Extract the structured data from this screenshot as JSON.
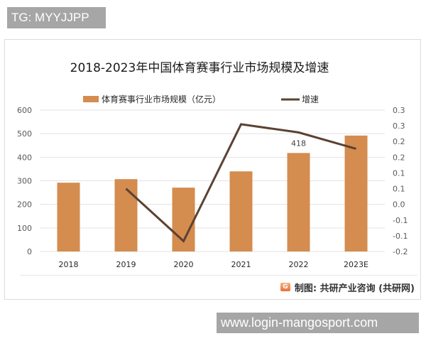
{
  "badge": {
    "text": "TG: MYYJJPP"
  },
  "url_banner": {
    "text": "www.login-mangosport.com"
  },
  "source": {
    "logo_letter": "G",
    "text": "制图: 共研产业咨询 (共研网)"
  },
  "colors": {
    "bar": "#d48c4f",
    "line": "#5b4232",
    "grid": "#e3e3e3",
    "axis_text": "#595959",
    "title": "#1a1a1a"
  },
  "chart_data": {
    "type": "bar",
    "title": "2018-2023年中国体育赛事行业市场规模及增速",
    "categories": [
      "2018",
      "2019",
      "2020",
      "2021",
      "2022",
      "2023E"
    ],
    "series": [
      {
        "name": "体育赛事行业市场规模（亿元）",
        "type": "bar",
        "axis": "left",
        "values": [
          292,
          307,
          271,
          340,
          418,
          492
        ],
        "data_labels": [
          null,
          null,
          null,
          null,
          "418",
          null
        ]
      },
      {
        "name": "增速",
        "type": "line",
        "axis": "right",
        "values": [
          null,
          0.05,
          -0.117,
          0.255,
          0.229,
          0.177
        ]
      }
    ],
    "left_axis": {
      "ylim": [
        0,
        600
      ],
      "ticks": [
        "600",
        "500",
        "400",
        "300",
        "200",
        "100",
        "0"
      ]
    },
    "right_axis": {
      "ylim": [
        -0.15,
        0.3
      ],
      "ticks": [
        "0.3",
        "0.3",
        "0.2",
        "0.2",
        "0.1",
        "0.1",
        "0.0",
        "-0.1",
        "-0.1",
        "-0.2"
      ]
    },
    "xlabel": "",
    "ylabel": "",
    "grid": true,
    "legend_position": "top"
  }
}
